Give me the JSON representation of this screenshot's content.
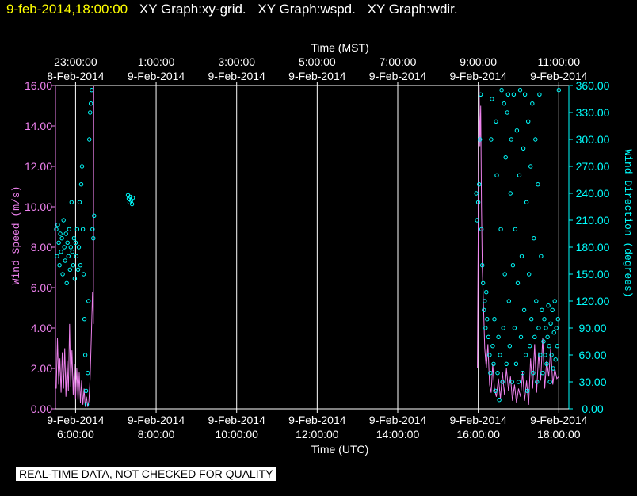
{
  "header": {
    "timestamp": "9-feb-2014,18:00:00",
    "graph_labels": [
      "XY Graph:xy-grid.",
      "XY Graph:wspd.",
      "XY Graph:wdir."
    ]
  },
  "footer": {
    "qc_notice": "REAL-TIME DATA, NOT CHECKED FOR QUALITY"
  },
  "colors": {
    "background": "#000000",
    "wspd": "#ee82ee",
    "wdir": "#00ffff",
    "grid": "#ffffff",
    "header_time": "#ffff00"
  },
  "chart_data": {
    "type": "line",
    "top_axis_title": "Time (MST)",
    "bottom_axis_title": "Time (UTC)",
    "y_left_label": "Wind Speed (m/s)",
    "y_right_label": "Wind Direction (degrees)",
    "x_range_utc_hours": [
      5.5,
      18.25
    ],
    "top_ticks": [
      {
        "t": 6,
        "time": "23:00:00",
        "date": "8-Feb-2014"
      },
      {
        "t": 8,
        "time": "1:00:00",
        "date": "9-Feb-2014"
      },
      {
        "t": 10,
        "time": "3:00:00",
        "date": "9-Feb-2014"
      },
      {
        "t": 12,
        "time": "5:00:00",
        "date": "9-Feb-2014"
      },
      {
        "t": 14,
        "time": "7:00:00",
        "date": "9-Feb-2014"
      },
      {
        "t": 16,
        "time": "9:00:00",
        "date": "9-Feb-2014"
      },
      {
        "t": 18,
        "time": "11:00:00",
        "date": "9-Feb-2014"
      }
    ],
    "bottom_ticks": [
      {
        "t": 6,
        "date": "9-Feb-2014",
        "time": "6:00:00"
      },
      {
        "t": 8,
        "date": "9-Feb-2014",
        "time": "8:00:00"
      },
      {
        "t": 10,
        "date": "9-Feb-2014",
        "time": "10:00:00"
      },
      {
        "t": 12,
        "date": "9-Feb-2014",
        "time": "12:00:00"
      },
      {
        "t": 14,
        "date": "9-Feb-2014",
        "time": "14:00:00"
      },
      {
        "t": 16,
        "date": "9-Feb-2014",
        "time": "16:00:00"
      },
      {
        "t": 18,
        "date": "9-Feb-2014",
        "time": "18:00:00"
      }
    ],
    "y_left_range": [
      0,
      16
    ],
    "y_left_ticks": [
      "0.00",
      "2.00",
      "4.00",
      "6.00",
      "8.00",
      "10.00",
      "12.00",
      "14.00",
      "16.00"
    ],
    "y_right_range": [
      0,
      360
    ],
    "y_right_ticks": [
      "0.00",
      "30.00",
      "60.00",
      "90.00",
      "120.00",
      "150.00",
      "180.00",
      "210.00",
      "240.00",
      "270.00",
      "300.00",
      "330.00",
      "360.00"
    ],
    "grid_lines_x": [
      6,
      8,
      10,
      12,
      14,
      16,
      18
    ],
    "series": [
      {
        "name": "wspd",
        "axis": "left",
        "points": [
          [
            5.52,
            1.0
          ],
          [
            5.55,
            3.5
          ],
          [
            5.58,
            1.2
          ],
          [
            5.61,
            2.5
          ],
          [
            5.64,
            0.8
          ],
          [
            5.67,
            2.8
          ],
          [
            5.7,
            1.0
          ],
          [
            5.73,
            3.0
          ],
          [
            5.76,
            0.6
          ],
          [
            5.79,
            2.4
          ],
          [
            5.82,
            0.9
          ],
          [
            5.85,
            4.2
          ],
          [
            5.88,
            1.1
          ],
          [
            5.91,
            2.9
          ],
          [
            5.94,
            0.7
          ],
          [
            5.97,
            2.2
          ],
          [
            6.0,
            0.5
          ],
          [
            6.03,
            2.0
          ],
          [
            6.06,
            0.4
          ],
          [
            6.09,
            1.8
          ],
          [
            6.12,
            0.3
          ],
          [
            6.15,
            1.4
          ],
          [
            6.18,
            0.2
          ],
          [
            6.21,
            1.0
          ],
          [
            6.24,
            0.1
          ],
          [
            6.27,
            0.6
          ],
          [
            6.3,
            0.1
          ],
          [
            6.33,
            0.4
          ],
          [
            6.36,
            1.5
          ],
          [
            6.39,
            3.5
          ],
          [
            6.42,
            5.8
          ],
          [
            6.44,
            4.2
          ],
          [
            6.45,
            16.0
          ],
          [
            15.98,
            2.0
          ],
          [
            16.0,
            9.0
          ],
          [
            16.02,
            16.0
          ],
          [
            16.04,
            13.0
          ],
          [
            16.06,
            15.0
          ],
          [
            16.08,
            10.0
          ],
          [
            16.1,
            7.0
          ],
          [
            16.13,
            5.0
          ],
          [
            16.16,
            3.0
          ],
          [
            16.2,
            2.0
          ],
          [
            16.24,
            3.2
          ],
          [
            16.28,
            1.2
          ],
          [
            16.32,
            0.8
          ],
          [
            16.36,
            2.2
          ],
          [
            16.4,
            1.0
          ],
          [
            16.45,
            0.6
          ],
          [
            16.5,
            1.5
          ],
          [
            16.55,
            0.5
          ],
          [
            16.6,
            1.8
          ],
          [
            16.65,
            0.7
          ],
          [
            16.7,
            2.0
          ],
          [
            16.75,
            0.9
          ],
          [
            16.8,
            1.6
          ],
          [
            16.85,
            0.4
          ],
          [
            16.9,
            1.2
          ],
          [
            16.95,
            0.3
          ],
          [
            17.0,
            1.0
          ],
          [
            17.05,
            0.6
          ],
          [
            17.1,
            1.8
          ],
          [
            17.15,
            0.4
          ],
          [
            17.2,
            1.4
          ],
          [
            17.25,
            0.2
          ],
          [
            17.3,
            2.5
          ],
          [
            17.35,
            1.0
          ],
          [
            17.4,
            3.2
          ],
          [
            17.45,
            0.8
          ],
          [
            17.5,
            2.8
          ],
          [
            17.55,
            1.4
          ],
          [
            17.6,
            3.5
          ],
          [
            17.65,
            1.0
          ],
          [
            17.7,
            2.4
          ],
          [
            17.75,
            1.6
          ],
          [
            17.8,
            3.0
          ],
          [
            17.85,
            1.2
          ],
          [
            17.9,
            2.0
          ],
          [
            17.95,
            1.5
          ],
          [
            18.0,
            1.6
          ]
        ]
      },
      {
        "name": "wdir",
        "axis": "right",
        "points": [
          [
            5.52,
            200
          ],
          [
            5.54,
            170
          ],
          [
            5.56,
            205
          ],
          [
            5.58,
            185
          ],
          [
            5.6,
            160
          ],
          [
            5.62,
            195
          ],
          [
            5.64,
            175
          ],
          [
            5.66,
            190
          ],
          [
            5.68,
            150
          ],
          [
            5.7,
            210
          ],
          [
            5.72,
            180
          ],
          [
            5.74,
            165
          ],
          [
            5.76,
            195
          ],
          [
            5.78,
            140
          ],
          [
            5.8,
            185
          ],
          [
            5.82,
            170
          ],
          [
            5.84,
            200
          ],
          [
            5.86,
            155
          ],
          [
            5.88,
            180
          ],
          [
            5.9,
            230
          ],
          [
            5.92,
            175
          ],
          [
            5.94,
            160
          ],
          [
            5.96,
            190
          ],
          [
            5.98,
            145
          ],
          [
            6.0,
            185
          ],
          [
            6.02,
            170
          ],
          [
            6.04,
            200
          ],
          [
            6.06,
            155
          ],
          [
            6.08,
            180
          ],
          [
            6.1,
            230
          ],
          [
            6.12,
            160
          ],
          [
            6.14,
            250
          ],
          [
            6.16,
            270
          ],
          [
            6.18,
            200
          ],
          [
            6.2,
            150
          ],
          [
            6.22,
            100
          ],
          [
            6.24,
            60
          ],
          [
            6.26,
            20
          ],
          [
            6.28,
            5
          ],
          [
            6.3,
            40
          ],
          [
            6.32,
            120
          ],
          [
            6.34,
            300
          ],
          [
            6.36,
            330
          ],
          [
            6.38,
            340
          ],
          [
            6.4,
            355
          ],
          [
            6.42,
            200
          ],
          [
            6.44,
            190
          ],
          [
            6.46,
            215
          ],
          [
            7.3,
            238
          ],
          [
            7.32,
            234
          ],
          [
            7.34,
            230
          ],
          [
            7.36,
            236
          ],
          [
            7.38,
            232
          ],
          [
            7.4,
            228
          ],
          [
            7.42,
            235
          ],
          [
            15.95,
            240
          ],
          [
            15.97,
            210
          ],
          [
            16.0,
            230
          ],
          [
            16.02,
            250
          ],
          [
            16.04,
            300
          ],
          [
            16.06,
            350
          ],
          [
            16.08,
            200
          ],
          [
            16.1,
            160
          ],
          [
            16.12,
            140
          ],
          [
            16.14,
            110
          ],
          [
            16.16,
            120
          ],
          [
            16.18,
            90
          ],
          [
            16.2,
            130
          ],
          [
            16.22,
            100
          ],
          [
            16.25,
            80
          ],
          [
            16.28,
            60
          ],
          [
            16.3,
            40
          ],
          [
            16.32,
            300
          ],
          [
            16.34,
            345
          ],
          [
            16.36,
            70
          ],
          [
            16.38,
            50
          ],
          [
            16.4,
            100
          ],
          [
            16.42,
            20
          ],
          [
            16.44,
            320
          ],
          [
            16.46,
            260
          ],
          [
            16.48,
            40
          ],
          [
            16.5,
            80
          ],
          [
            16.52,
            10
          ],
          [
            16.54,
            60
          ],
          [
            16.56,
            200
          ],
          [
            16.58,
            355
          ],
          [
            16.6,
            30
          ],
          [
            16.62,
            90
          ],
          [
            16.64,
            340
          ],
          [
            16.66,
            150
          ],
          [
            16.68,
            280
          ],
          [
            16.7,
            50
          ],
          [
            16.72,
            330
          ],
          [
            16.74,
            350
          ],
          [
            16.76,
            120
          ],
          [
            16.78,
            70
          ],
          [
            16.8,
            240
          ],
          [
            16.82,
            300
          ],
          [
            16.84,
            30
          ],
          [
            16.86,
            160
          ],
          [
            16.88,
            350
          ],
          [
            16.9,
            90
          ],
          [
            16.92,
            200
          ],
          [
            16.94,
            50
          ],
          [
            16.96,
            310
          ],
          [
            16.98,
            140
          ],
          [
            17.0,
            30
          ],
          [
            17.02,
            260
          ],
          [
            17.04,
            355
          ],
          [
            17.06,
            80
          ],
          [
            17.08,
            170
          ],
          [
            17.1,
            40
          ],
          [
            17.12,
            290
          ],
          [
            17.14,
            110
          ],
          [
            17.16,
            350
          ],
          [
            17.18,
            60
          ],
          [
            17.2,
            230
          ],
          [
            17.22,
            20
          ],
          [
            17.24,
            320
          ],
          [
            17.26,
            150
          ],
          [
            17.28,
            70
          ],
          [
            17.3,
            270
          ],
          [
            17.32,
            100
          ],
          [
            17.34,
            340
          ],
          [
            17.36,
            40
          ],
          [
            17.38,
            190
          ],
          [
            17.4,
            80
          ],
          [
            17.42,
            300
          ],
          [
            17.44,
            120
          ],
          [
            17.46,
            30
          ],
          [
            17.48,
            250
          ],
          [
            17.5,
            90
          ],
          [
            17.52,
            350
          ],
          [
            17.54,
            60
          ],
          [
            17.56,
            170
          ],
          [
            17.58,
            110
          ],
          [
            17.6,
            40
          ],
          [
            17.62,
            75
          ],
          [
            17.64,
            100
          ],
          [
            17.66,
            60
          ],
          [
            17.68,
            90
          ],
          [
            17.7,
            50
          ],
          [
            17.72,
            80
          ],
          [
            17.74,
            115
          ],
          [
            17.76,
            70
          ],
          [
            17.78,
            30
          ],
          [
            17.8,
            95
          ],
          [
            17.82,
            60
          ],
          [
            17.84,
            110
          ],
          [
            17.86,
            45
          ],
          [
            17.88,
            85
          ],
          [
            17.9,
            120
          ],
          [
            17.92,
            55
          ],
          [
            17.94,
            90
          ],
          [
            17.96,
            70
          ],
          [
            17.98,
            100
          ],
          [
            18.0,
            355
          ]
        ]
      }
    ]
  }
}
